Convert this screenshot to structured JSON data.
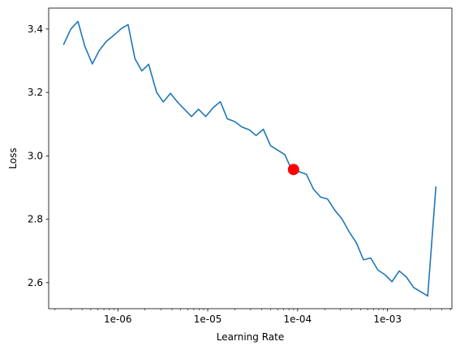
{
  "chart_data": {
    "type": "line",
    "xlabel": "Learning Rate",
    "ylabel": "Loss",
    "xscale": "log",
    "grid": false,
    "xlim": [
      1.7e-07,
      0.0052
    ],
    "ylim": [
      2.518,
      3.466
    ],
    "x_ticks": [
      {
        "value": 1e-06,
        "label": "1e-06"
      },
      {
        "value": 1e-05,
        "label": "1e-05"
      },
      {
        "value": 0.0001,
        "label": "1e-04"
      },
      {
        "value": 0.001,
        "label": "1e-03"
      }
    ],
    "y_ticks": [
      {
        "value": 2.6,
        "label": "2.6"
      },
      {
        "value": 2.8,
        "label": "2.8"
      },
      {
        "value": 3.0,
        "label": "3.0"
      },
      {
        "value": 3.2,
        "label": "3.2"
      },
      {
        "value": 3.4,
        "label": "3.4"
      }
    ],
    "line_color": "#1f77b4",
    "marker_color": "#ff0000",
    "series": [
      {
        "x": [
          2.5e-07,
          3e-07,
          3.6e-07,
          4.3e-07,
          5.2e-07,
          6.2e-07,
          7.5e-07,
          9e-07,
          1.1e-06,
          1.3e-06,
          1.55e-06,
          1.85e-06,
          2.2e-06,
          2.7e-06,
          3.2e-06,
          3.85e-06,
          4.6e-06,
          5.5e-06,
          6.6e-06,
          7.9e-06,
          9.5e-06,
          1.15e-05,
          1.38e-05,
          1.65e-05,
          2e-05,
          2.4e-05,
          2.9e-05,
          3.45e-05,
          4.15e-05,
          5e-05,
          6e-05,
          7.2e-05,
          8.6e-05,
          0.000104,
          0.000125,
          0.00015,
          0.00018,
          0.000215,
          0.00026,
          0.00031,
          0.000375,
          0.00045,
          0.00054,
          0.00065,
          0.00078,
          0.00094,
          0.00112,
          0.00135,
          0.00162,
          0.00195,
          0.0028,
          0.00345
        ],
        "y": [
          3.352,
          3.4,
          3.424,
          3.345,
          3.29,
          3.332,
          3.362,
          3.38,
          3.402,
          3.414,
          3.306,
          3.268,
          3.289,
          3.2,
          3.17,
          3.197,
          3.17,
          3.147,
          3.124,
          3.147,
          3.124,
          3.152,
          3.171,
          3.117,
          3.108,
          3.091,
          3.082,
          3.064,
          3.084,
          3.032,
          3.018,
          3.004,
          2.955,
          2.95,
          2.942,
          2.895,
          2.87,
          2.864,
          2.828,
          2.802,
          2.76,
          2.726,
          2.672,
          2.678,
          2.64,
          2.625,
          2.603,
          2.637,
          2.618,
          2.585,
          2.558,
          2.902
        ]
      }
    ],
    "highlight_point": {
      "x": 9e-05,
      "y": 2.957
    }
  }
}
